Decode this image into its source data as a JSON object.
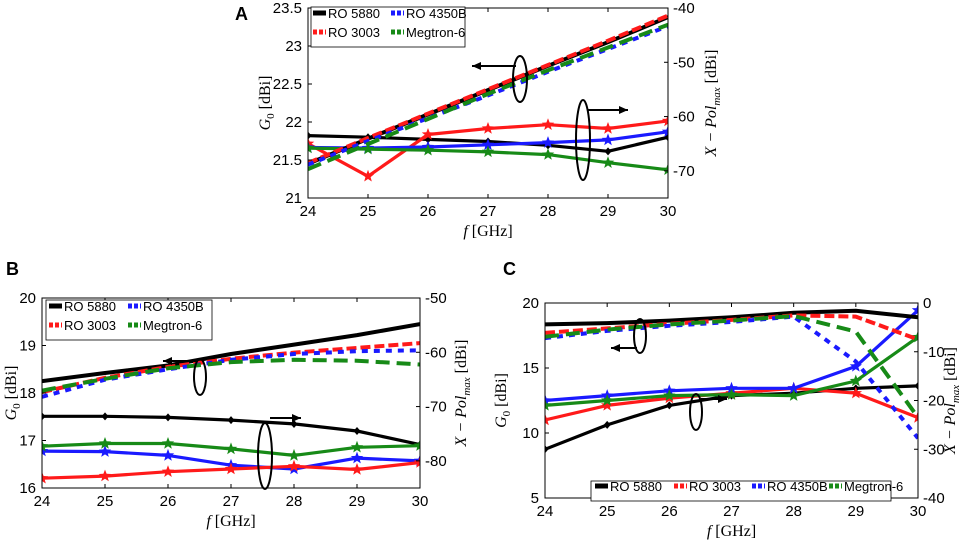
{
  "colors": {
    "RO 5880": "#000000",
    "RO 4350B": "#1a1aff",
    "RO 3003": "#ff1a1a",
    "Megtron-6": "#178a17"
  },
  "chart_data": [
    {
      "panel": "A",
      "type": "line",
      "xlabel_var": "f",
      "xlabel_unit": "[GHz]",
      "ylabel_var": "G",
      "ylabel_sub": "0",
      "ylabel_unit": "[dBi]",
      "y2label_var": "X − Pol",
      "y2label_sub": "max",
      "y2label_unit": "[dBi]",
      "xlim": [
        24,
        30
      ],
      "ylim": [
        21,
        23.5
      ],
      "y2lim": [
        -75,
        -40
      ],
      "xticks": [
        "24",
        "25",
        "26",
        "27",
        "28",
        "29",
        "30"
      ],
      "yticks": [
        "21",
        "21.5",
        "22",
        "22.5",
        "23",
        "23.5"
      ],
      "y2ticks": [
        "-40",
        "-50",
        "-60",
        "-70"
      ],
      "legend": [
        "RO 5880",
        "RO 4350B",
        "RO 3003",
        "Megtron-6"
      ],
      "gain_series": [
        {
          "name": "RO 5880",
          "x": [
            24,
            25,
            26,
            27,
            28,
            29,
            30
          ],
          "values": [
            21.45,
            21.78,
            22.1,
            22.42,
            22.74,
            23.05,
            23.38
          ]
        },
        {
          "name": "RO 3003",
          "x": [
            24,
            25,
            26,
            27,
            28,
            29,
            30
          ],
          "values": [
            21.46,
            21.79,
            22.11,
            22.43,
            22.75,
            23.07,
            23.4
          ]
        },
        {
          "name": "RO 4350B",
          "x": [
            24,
            25,
            26,
            27,
            28,
            29,
            30
          ],
          "values": [
            21.44,
            21.75,
            22.05,
            22.35,
            22.66,
            22.96,
            23.26
          ]
        },
        {
          "name": "Megtron-6",
          "x": [
            24,
            25,
            26,
            27,
            28,
            29,
            30
          ],
          "values": [
            21.38,
            21.71,
            22.04,
            22.37,
            22.68,
            22.98,
            23.28
          ]
        }
      ],
      "xpol_series": [
        {
          "name": "RO 5880",
          "x": [
            24,
            25,
            26,
            27,
            28,
            29,
            30
          ],
          "values": [
            -63.5,
            -63.8,
            -64.2,
            -64.6,
            -65.3,
            -66.4,
            -63.8
          ]
        },
        {
          "name": "RO 3003",
          "x": [
            24,
            25,
            26,
            27,
            28,
            29,
            30
          ],
          "values": [
            -65.0,
            -71.0,
            -63.3,
            -62.2,
            -61.5,
            -62.2,
            -60.8
          ]
        },
        {
          "name": "RO 4350B",
          "x": [
            24,
            25,
            26,
            27,
            28,
            29,
            30
          ],
          "values": [
            -65.7,
            -65.8,
            -65.6,
            -65.2,
            -64.8,
            -64.3,
            -62.8
          ]
        },
        {
          "name": "Megtron-6",
          "x": [
            24,
            25,
            26,
            27,
            28,
            29,
            30
          ],
          "values": [
            -65.8,
            -66.0,
            -66.2,
            -66.5,
            -67.0,
            -68.5,
            -69.8
          ]
        }
      ],
      "annotations": [
        "gain curves → left axis",
        "X-pol curves → right axis"
      ]
    },
    {
      "panel": "B",
      "type": "line",
      "xlabel_var": "f",
      "xlabel_unit": "[GHz]",
      "ylabel_var": "G",
      "ylabel_sub": "0",
      "ylabel_unit": "[dBi]",
      "y2label_var": "X − Pol",
      "y2label_sub": "max",
      "y2label_unit": "[dBi]",
      "xlim": [
        24,
        30
      ],
      "ylim": [
        16,
        20
      ],
      "y2lim": [
        -85,
        -50
      ],
      "xticks": [
        "24",
        "25",
        "26",
        "27",
        "28",
        "29",
        "30"
      ],
      "yticks": [
        "16",
        "17",
        "18",
        "19",
        "20"
      ],
      "y2ticks": [
        "-50",
        "-60",
        "-70",
        "-80"
      ],
      "legend": [
        "RO 5880",
        "RO 4350B",
        "RO 3003",
        "Megtron-6"
      ],
      "gain_series": [
        {
          "name": "RO 5880",
          "x": [
            24,
            25,
            26,
            27,
            28,
            29,
            30
          ],
          "values": [
            18.25,
            18.42,
            18.58,
            18.82,
            19.02,
            19.22,
            19.45
          ]
        },
        {
          "name": "RO 3003",
          "x": [
            24,
            25,
            26,
            27,
            28,
            29,
            30
          ],
          "values": [
            18.02,
            18.32,
            18.55,
            18.72,
            18.85,
            18.95,
            19.05
          ]
        },
        {
          "name": "RO 4350B",
          "x": [
            24,
            25,
            26,
            27,
            28,
            29,
            30
          ],
          "values": [
            17.92,
            18.28,
            18.5,
            18.7,
            18.82,
            18.88,
            18.9
          ]
        },
        {
          "name": "Megtron-6",
          "x": [
            24,
            25,
            26,
            27,
            28,
            29,
            30
          ],
          "values": [
            18.05,
            18.3,
            18.52,
            18.65,
            18.7,
            18.68,
            18.6
          ]
        }
      ],
      "xpol_series": [
        {
          "name": "RO 5880",
          "x": [
            24,
            25,
            26,
            27,
            28,
            29,
            30
          ],
          "values": [
            -71.8,
            -71.8,
            -72.0,
            -72.5,
            -73.2,
            -74.5,
            -77.0
          ]
        },
        {
          "name": "RO 4350B",
          "x": [
            24,
            25,
            26,
            27,
            28,
            29,
            30
          ],
          "values": [
            -78.2,
            -78.3,
            -79.0,
            -80.8,
            -81.5,
            -79.5,
            -80.0
          ]
        },
        {
          "name": "RO 3003",
          "x": [
            24,
            25,
            26,
            27,
            28,
            29,
            30
          ],
          "values": [
            -83.2,
            -82.8,
            -82.0,
            -81.5,
            -81.0,
            -81.6,
            -80.3
          ]
        },
        {
          "name": "Megtron-6",
          "x": [
            24,
            25,
            26,
            27,
            28,
            29,
            30
          ],
          "values": [
            -77.3,
            -76.8,
            -76.8,
            -77.8,
            -79.0,
            -77.5,
            -77.2
          ]
        }
      ],
      "annotations": [
        "gain curves → left axis",
        "X-pol curves → right axis"
      ]
    },
    {
      "panel": "C",
      "type": "line",
      "xlabel_var": "f",
      "xlabel_unit": "[GHz]",
      "ylabel_var": "G",
      "ylabel_sub": "0",
      "ylabel_unit": "[dBi]",
      "y2label_var": "X − Pol",
      "y2label_sub": "max",
      "y2label_unit": "[dBi]",
      "xlim": [
        24,
        30
      ],
      "ylim": [
        5,
        20
      ],
      "y2lim": [
        -40,
        0
      ],
      "xticks": [
        "24",
        "25",
        "26",
        "27",
        "28",
        "29",
        "30"
      ],
      "yticks": [
        "5",
        "10",
        "15",
        "20"
      ],
      "y2ticks": [
        "0",
        "-10",
        "-20",
        "-30",
        "-40"
      ],
      "legend": [
        "RO 5880",
        "RO 3003",
        "RO 4350B",
        "Megtron-6"
      ],
      "gain_series": [
        {
          "name": "RO 5880",
          "x": [
            24,
            25,
            26,
            27,
            28,
            29,
            30
          ],
          "values": [
            18.35,
            18.45,
            18.65,
            18.9,
            19.25,
            19.4,
            18.9
          ]
        },
        {
          "name": "RO 3003",
          "x": [
            24,
            25,
            26,
            27,
            28,
            29,
            30
          ],
          "values": [
            17.7,
            18.05,
            18.4,
            18.7,
            19.05,
            18.95,
            17.2
          ]
        },
        {
          "name": "RO 4350B",
          "x": [
            24,
            25,
            26,
            27,
            28,
            29,
            30
          ],
          "values": [
            17.3,
            17.85,
            18.25,
            18.55,
            18.95,
            15.5,
            9.6
          ]
        },
        {
          "name": "Megtron-6",
          "x": [
            24,
            25,
            26,
            27,
            28,
            29,
            30
          ],
          "values": [
            17.4,
            17.95,
            18.35,
            18.65,
            19.0,
            17.8,
            11.2
          ]
        }
      ],
      "xpol_series": [
        {
          "name": "RO 5880",
          "x": [
            24,
            25,
            26,
            27,
            28,
            29,
            30
          ],
          "values": [
            -30.0,
            -25.0,
            -21.0,
            -19.0,
            -18.5,
            -17.5,
            -17.0
          ]
        },
        {
          "name": "RO 3003",
          "x": [
            24,
            25,
            26,
            27,
            28,
            29,
            30
          ],
          "values": [
            -24.0,
            -21.0,
            -19.5,
            -18.5,
            -17.5,
            -18.5,
            -23.5
          ]
        },
        {
          "name": "RO 4350B",
          "x": [
            24,
            25,
            26,
            27,
            28,
            29,
            30
          ],
          "values": [
            -20.0,
            -19.0,
            -18.0,
            -17.5,
            -17.5,
            -13.0,
            -1.5
          ]
        },
        {
          "name": "Megtron-6",
          "x": [
            24,
            25,
            26,
            27,
            28,
            29,
            30
          ],
          "values": [
            -21.0,
            -20.0,
            -19.0,
            -18.8,
            -19.0,
            -16.0,
            -7.0
          ]
        }
      ],
      "annotations": [
        "gain curves → left axis",
        "X-pol curves → right axis"
      ]
    }
  ]
}
